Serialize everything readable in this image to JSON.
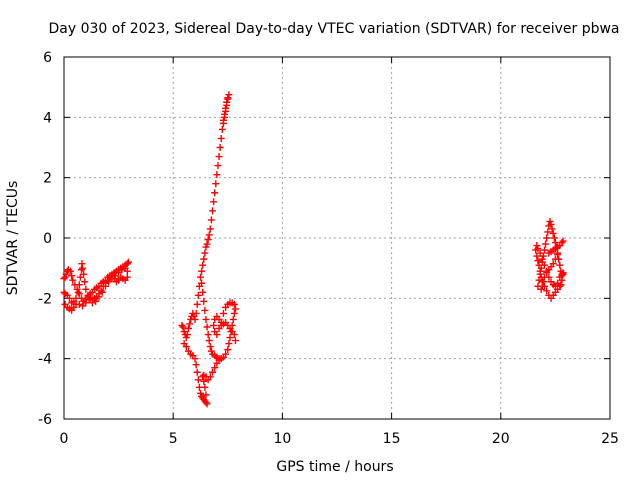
{
  "chart_data": {
    "type": "scatter",
    "title": "Day 030 of 2023, Sidereal Day-to-day VTEC variation (SDTVAR) for receiver pbwa",
    "xlabel": "GPS time / hours",
    "ylabel": "SDTVAR / TECUs",
    "xlim": [
      0,
      25
    ],
    "ylim": [
      -6,
      6
    ],
    "xticks": [
      0,
      5,
      10,
      15,
      20,
      25
    ],
    "yticks": [
      -6,
      -4,
      -2,
      0,
      2,
      4,
      6
    ],
    "grid": true,
    "marker": "+",
    "color": "#ff0000",
    "series": [
      {
        "points": [
          [
            0.0,
            -1.35
          ],
          [
            0.05,
            -1.3
          ],
          [
            0.1,
            -1.2
          ],
          [
            0.15,
            -1.1
          ],
          [
            0.2,
            -1.05
          ],
          [
            0.3,
            -1.1
          ],
          [
            0.35,
            -1.25
          ],
          [
            0.4,
            -1.4
          ],
          [
            0.5,
            -1.55
          ],
          [
            0.6,
            -1.7
          ],
          [
            0.7,
            -1.85
          ],
          [
            0.8,
            -2.0
          ],
          [
            0.9,
            -2.1
          ],
          [
            1.0,
            -2.05
          ],
          [
            1.1,
            -1.95
          ],
          [
            1.2,
            -1.85
          ],
          [
            1.3,
            -1.8
          ],
          [
            1.4,
            -1.7
          ],
          [
            1.5,
            -1.65
          ],
          [
            1.6,
            -1.6
          ],
          [
            1.7,
            -1.5
          ],
          [
            1.8,
            -1.45
          ],
          [
            1.9,
            -1.4
          ],
          [
            2.0,
            -1.3
          ],
          [
            2.1,
            -1.25
          ],
          [
            2.2,
            -1.2
          ],
          [
            2.3,
            -1.15
          ],
          [
            2.4,
            -1.1
          ],
          [
            2.5,
            -1.05
          ],
          [
            2.6,
            -1.0
          ],
          [
            2.7,
            -0.95
          ],
          [
            2.8,
            -0.9
          ],
          [
            2.9,
            -0.85
          ],
          [
            2.95,
            -0.8
          ],
          [
            2.9,
            -1.3
          ],
          [
            2.8,
            -1.4
          ],
          [
            2.7,
            -1.35
          ],
          [
            2.6,
            -1.3
          ],
          [
            2.5,
            -1.4
          ],
          [
            2.4,
            -1.45
          ],
          [
            2.3,
            -1.35
          ],
          [
            2.2,
            -1.25
          ],
          [
            2.1,
            -1.3
          ],
          [
            2.0,
            -1.4
          ],
          [
            1.9,
            -1.5
          ],
          [
            1.8,
            -1.6
          ],
          [
            1.7,
            -1.75
          ],
          [
            1.6,
            -1.85
          ],
          [
            1.5,
            -1.95
          ],
          [
            1.4,
            -2.0
          ],
          [
            1.3,
            -2.05
          ],
          [
            1.2,
            -2.0
          ],
          [
            1.1,
            -1.9
          ],
          [
            1.0,
            -1.7
          ],
          [
            0.95,
            -1.45
          ],
          [
            0.9,
            -1.2
          ],
          [
            0.85,
            -1.0
          ],
          [
            0.82,
            -0.85
          ],
          [
            0.8,
            -1.05
          ],
          [
            0.75,
            -1.3
          ],
          [
            0.7,
            -1.55
          ],
          [
            0.65,
            -1.8
          ],
          [
            0.55,
            -2.0
          ],
          [
            0.45,
            -2.1
          ],
          [
            0.35,
            -2.15
          ],
          [
            0.25,
            -2.0
          ],
          [
            0.15,
            -1.9
          ],
          [
            0.05,
            -1.85
          ],
          [
            0.0,
            -1.8
          ],
          [
            0.05,
            -2.2
          ],
          [
            0.15,
            -2.3
          ],
          [
            0.25,
            -2.35
          ],
          [
            0.35,
            -2.4
          ],
          [
            0.45,
            -2.3
          ],
          [
            0.55,
            -2.2
          ],
          [
            0.7,
            -2.2
          ],
          [
            0.85,
            -2.25
          ],
          [
            1.0,
            -2.15
          ],
          [
            1.15,
            -2.05
          ],
          [
            1.3,
            -2.15
          ],
          [
            1.45,
            -2.1
          ],
          [
            1.6,
            -1.95
          ],
          [
            1.75,
            -1.8
          ],
          [
            1.9,
            -1.6
          ],
          [
            2.05,
            -1.45
          ],
          [
            2.2,
            -1.35
          ],
          [
            2.35,
            -1.25
          ],
          [
            2.5,
            -1.15
          ],
          [
            2.65,
            -1.05
          ],
          [
            2.8,
            -1.0
          ],
          [
            2.9,
            -1.1
          ],
          [
            5.4,
            -2.9
          ],
          [
            5.45,
            -2.95
          ],
          [
            5.5,
            -3.1
          ],
          [
            5.55,
            -3.2
          ],
          [
            5.6,
            -3.3
          ],
          [
            5.65,
            -3.2
          ],
          [
            5.7,
            -3.0
          ],
          [
            5.75,
            -2.85
          ],
          [
            5.8,
            -2.7
          ],
          [
            5.85,
            -2.6
          ],
          [
            5.9,
            -2.5
          ],
          [
            5.95,
            -2.6
          ],
          [
            6.0,
            -2.7
          ],
          [
            6.05,
            -2.5
          ],
          [
            6.1,
            -2.2
          ],
          [
            6.15,
            -1.9
          ],
          [
            6.2,
            -1.6
          ],
          [
            6.25,
            -1.3
          ],
          [
            6.3,
            -1.1
          ],
          [
            6.35,
            -0.9
          ],
          [
            6.4,
            -0.7
          ],
          [
            6.45,
            -0.5
          ],
          [
            6.5,
            -0.3
          ],
          [
            6.55,
            -0.2
          ],
          [
            6.6,
            -0.05
          ],
          [
            6.65,
            0.1
          ],
          [
            6.7,
            0.3
          ],
          [
            6.75,
            0.6
          ],
          [
            6.8,
            0.9
          ],
          [
            6.85,
            1.2
          ],
          [
            6.9,
            1.5
          ],
          [
            6.95,
            1.8
          ],
          [
            7.0,
            2.1
          ],
          [
            7.05,
            2.4
          ],
          [
            7.1,
            2.7
          ],
          [
            7.15,
            3.0
          ],
          [
            7.2,
            3.3
          ],
          [
            7.25,
            3.6
          ],
          [
            7.3,
            3.9
          ],
          [
            7.35,
            4.1
          ],
          [
            7.4,
            4.3
          ],
          [
            7.45,
            4.5
          ],
          [
            7.5,
            4.65
          ],
          [
            7.55,
            4.75
          ],
          [
            7.5,
            4.6
          ],
          [
            7.45,
            4.4
          ],
          [
            7.4,
            4.2
          ],
          [
            7.35,
            4.0
          ],
          [
            7.3,
            3.8
          ],
          [
            6.3,
            -1.5
          ],
          [
            6.35,
            -1.8
          ],
          [
            6.4,
            -2.1
          ],
          [
            6.45,
            -2.4
          ],
          [
            6.5,
            -2.7
          ],
          [
            6.55,
            -2.95
          ],
          [
            6.6,
            -3.2
          ],
          [
            6.65,
            -3.4
          ],
          [
            6.7,
            -3.6
          ],
          [
            6.75,
            -3.75
          ],
          [
            6.8,
            -3.85
          ],
          [
            6.9,
            -3.9
          ],
          [
            7.0,
            -3.95
          ],
          [
            7.1,
            -4.0
          ],
          [
            7.2,
            -4.0
          ],
          [
            7.3,
            -3.95
          ],
          [
            7.4,
            -3.85
          ],
          [
            7.5,
            -3.7
          ],
          [
            7.55,
            -3.5
          ],
          [
            7.6,
            -3.3
          ],
          [
            7.65,
            -3.1
          ],
          [
            7.7,
            -2.9
          ],
          [
            7.75,
            -2.7
          ],
          [
            7.8,
            -2.5
          ],
          [
            7.85,
            -2.35
          ],
          [
            7.8,
            -2.2
          ],
          [
            7.7,
            -2.15
          ],
          [
            7.6,
            -2.15
          ],
          [
            7.5,
            -2.2
          ],
          [
            7.4,
            -2.3
          ],
          [
            7.3,
            -2.5
          ],
          [
            7.2,
            -2.8
          ],
          [
            7.1,
            -3.0
          ],
          [
            7.0,
            -3.2
          ],
          [
            6.9,
            -3.1
          ],
          [
            6.85,
            -2.9
          ],
          [
            6.9,
            -2.7
          ],
          [
            7.0,
            -2.6
          ],
          [
            7.1,
            -2.7
          ],
          [
            7.2,
            -2.9
          ],
          [
            7.3,
            -2.85
          ],
          [
            7.4,
            -2.8
          ],
          [
            7.5,
            -2.9
          ],
          [
            7.6,
            -3.0
          ],
          [
            7.7,
            -3.1
          ],
          [
            7.8,
            -3.2
          ],
          [
            7.85,
            -3.4
          ],
          [
            5.5,
            -3.5
          ],
          [
            5.6,
            -3.6
          ],
          [
            5.7,
            -3.75
          ],
          [
            5.8,
            -3.85
          ],
          [
            5.9,
            -3.9
          ],
          [
            6.0,
            -4.0
          ],
          [
            6.05,
            -4.2
          ],
          [
            6.1,
            -4.45
          ],
          [
            6.15,
            -4.7
          ],
          [
            6.2,
            -4.95
          ],
          [
            6.25,
            -5.15
          ],
          [
            6.3,
            -5.25
          ],
          [
            6.35,
            -5.3
          ],
          [
            6.4,
            -5.35
          ],
          [
            6.45,
            -5.4
          ],
          [
            6.5,
            -5.45
          ],
          [
            6.55,
            -5.5
          ],
          [
            6.5,
            -5.2
          ],
          [
            6.45,
            -4.95
          ],
          [
            6.4,
            -4.75
          ],
          [
            6.35,
            -4.6
          ],
          [
            6.4,
            -4.55
          ],
          [
            6.5,
            -4.6
          ],
          [
            6.6,
            -4.7
          ],
          [
            6.7,
            -4.6
          ],
          [
            6.8,
            -4.45
          ],
          [
            6.9,
            -4.3
          ],
          [
            7.0,
            -4.15
          ],
          [
            7.1,
            -4.05
          ],
          [
            7.2,
            -4.0
          ],
          [
            21.7,
            -1.6
          ],
          [
            21.75,
            -1.4
          ],
          [
            21.8,
            -1.2
          ],
          [
            21.85,
            -1.0
          ],
          [
            21.9,
            -0.8
          ],
          [
            21.95,
            -0.6
          ],
          [
            22.0,
            -0.4
          ],
          [
            22.05,
            -0.2
          ],
          [
            22.1,
            0.0
          ],
          [
            22.15,
            0.2
          ],
          [
            22.2,
            0.4
          ],
          [
            22.25,
            0.55
          ],
          [
            22.3,
            0.45
          ],
          [
            22.35,
            0.3
          ],
          [
            22.4,
            0.15
          ],
          [
            22.45,
            0.0
          ],
          [
            22.5,
            -0.15
          ],
          [
            22.55,
            -0.3
          ],
          [
            22.6,
            -0.5
          ],
          [
            22.65,
            -0.7
          ],
          [
            22.7,
            -0.9
          ],
          [
            22.75,
            -1.1
          ],
          [
            22.8,
            -1.25
          ],
          [
            22.85,
            -1.2
          ],
          [
            22.8,
            -1.4
          ],
          [
            22.75,
            -1.55
          ],
          [
            22.7,
            -1.6
          ],
          [
            22.6,
            -1.7
          ],
          [
            22.5,
            -1.8
          ],
          [
            22.4,
            -1.9
          ],
          [
            22.3,
            -2.0
          ],
          [
            22.2,
            -1.9
          ],
          [
            22.1,
            -1.75
          ],
          [
            22.0,
            -1.6
          ],
          [
            21.9,
            -1.45
          ],
          [
            21.85,
            -1.3
          ],
          [
            21.8,
            -1.1
          ],
          [
            21.75,
            -0.9
          ],
          [
            21.7,
            -0.75
          ],
          [
            21.65,
            -0.6
          ],
          [
            21.6,
            -0.4
          ],
          [
            21.65,
            -0.25
          ],
          [
            21.7,
            -0.35
          ],
          [
            21.8,
            -0.5
          ],
          [
            21.9,
            -0.7
          ],
          [
            22.0,
            -0.9
          ],
          [
            22.1,
            -1.1
          ],
          [
            22.2,
            -1.3
          ],
          [
            22.3,
            -1.45
          ],
          [
            22.4,
            -1.55
          ],
          [
            22.5,
            -1.6
          ],
          [
            22.6,
            -1.5
          ],
          [
            22.7,
            -1.3
          ],
          [
            22.8,
            -1.2
          ],
          [
            22.85,
            -1.15
          ],
          [
            22.2,
            -0.5
          ],
          [
            22.3,
            -0.45
          ],
          [
            22.4,
            -0.4
          ],
          [
            22.5,
            -0.35
          ],
          [
            22.6,
            -0.3
          ],
          [
            22.7,
            -0.25
          ],
          [
            22.8,
            -0.15
          ],
          [
            22.85,
            -0.1
          ],
          [
            22.6,
            -0.55
          ],
          [
            22.5,
            -0.7
          ],
          [
            22.4,
            -0.85
          ],
          [
            22.3,
            -0.95
          ],
          [
            22.2,
            -1.05
          ],
          [
            22.1,
            -1.15
          ],
          [
            22.0,
            -1.3
          ],
          [
            21.95,
            -1.45
          ],
          [
            21.9,
            -1.6
          ],
          [
            21.85,
            -1.7
          ]
        ]
      }
    ]
  }
}
